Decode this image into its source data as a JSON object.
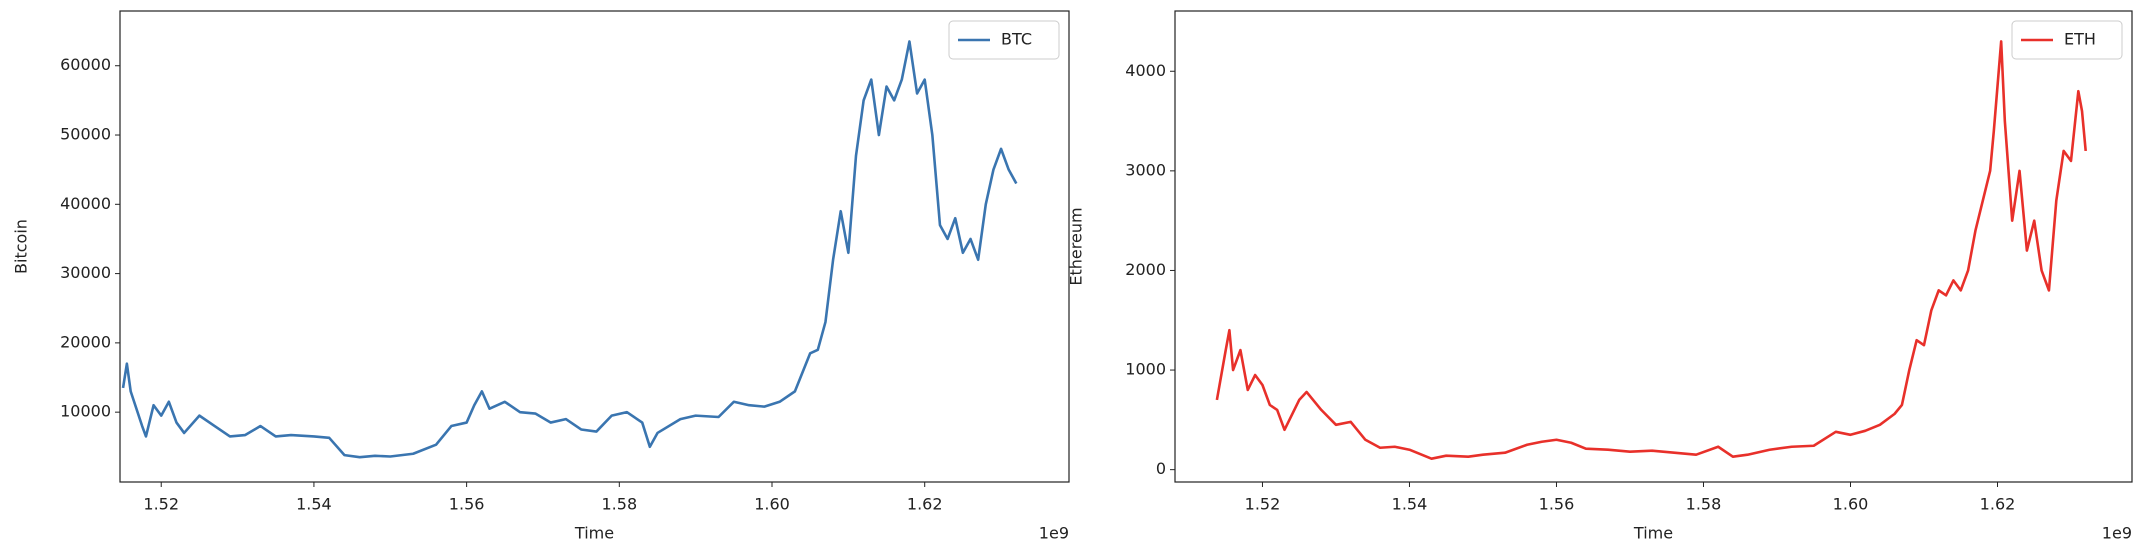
{
  "chart_data": [
    {
      "type": "line",
      "xlabel": "Time",
      "ylabel": "Bitcoin",
      "x_offset_label": "1e9",
      "legend": "upper right",
      "x": [
        1.515,
        1.5155,
        1.516,
        1.5175,
        1.518,
        1.519,
        1.52,
        1.521,
        1.522,
        1.523,
        1.525,
        1.527,
        1.529,
        1.531,
        1.533,
        1.535,
        1.537,
        1.54,
        1.542,
        1.544,
        1.546,
        1.548,
        1.55,
        1.553,
        1.556,
        1.558,
        1.56,
        1.561,
        1.562,
        1.563,
        1.565,
        1.567,
        1.569,
        1.571,
        1.573,
        1.575,
        1.577,
        1.579,
        1.581,
        1.583,
        1.584,
        1.585,
        1.588,
        1.59,
        1.593,
        1.595,
        1.597,
        1.599,
        1.601,
        1.603,
        1.605,
        1.606,
        1.607,
        1.608,
        1.609,
        1.61,
        1.611,
        1.612,
        1.613,
        1.614,
        1.615,
        1.616,
        1.617,
        1.618,
        1.619,
        1.62,
        1.621,
        1.622,
        1.623,
        1.624,
        1.625,
        1.626,
        1.627,
        1.628,
        1.629,
        1.63,
        1.631,
        1.632
      ],
      "series": [
        {
          "name": "BTC",
          "color": "#3a75b0",
          "values": [
            13500,
            17000,
            13000,
            8000,
            6500,
            11000,
            9500,
            11500,
            8500,
            7000,
            9500,
            8000,
            6500,
            6700,
            8000,
            6500,
            6700,
            6500,
            6300,
            3800,
            3500,
            3700,
            3600,
            4000,
            5300,
            8000,
            8500,
            11000,
            13000,
            10500,
            11500,
            10000,
            9800,
            8500,
            9000,
            7500,
            7200,
            9500,
            10000,
            8500,
            5000,
            7000,
            9000,
            9500,
            9300,
            11500,
            11000,
            10800,
            11500,
            13000,
            18500,
            19000,
            23000,
            32000,
            39000,
            33000,
            47000,
            55000,
            58000,
            50000,
            57000,
            55000,
            58000,
            63500,
            56000,
            58000,
            50000,
            37000,
            35000,
            38000,
            33000,
            35000,
            32000,
            40000,
            45000,
            48000,
            45000,
            43000
          ]
        }
      ],
      "xlim": [
        1.5146,
        1.6389
      ],
      "ylim": [
        -80,
        67900
      ],
      "xticks": [
        1.52,
        1.54,
        1.56,
        1.58,
        {
          "value": 1.6,
          "label": "1.60"
        },
        1.62
      ],
      "yticks": [
        10000,
        20000,
        30000,
        40000,
        50000,
        60000
      ]
    },
    {
      "type": "line",
      "xlabel": "Time",
      "ylabel": "Ethereum",
      "x_offset_label": "1e9",
      "legend": "upper right",
      "x": [
        1.5138,
        1.515,
        1.5155,
        1.516,
        1.517,
        1.518,
        1.519,
        1.52,
        1.521,
        1.522,
        1.523,
        1.525,
        1.526,
        1.528,
        1.53,
        1.532,
        1.534,
        1.536,
        1.538,
        1.54,
        1.543,
        1.545,
        1.548,
        1.55,
        1.553,
        1.556,
        1.558,
        1.56,
        1.562,
        1.564,
        1.567,
        1.57,
        1.573,
        1.576,
        1.579,
        1.582,
        1.584,
        1.586,
        1.589,
        1.592,
        1.595,
        1.598,
        1.6,
        1.602,
        1.604,
        1.606,
        1.607,
        1.608,
        1.609,
        1.61,
        1.611,
        1.612,
        1.613,
        1.614,
        1.615,
        1.616,
        1.617,
        1.618,
        1.619,
        1.6195,
        1.6205,
        1.621,
        1.622,
        1.623,
        1.624,
        1.625,
        1.626,
        1.627,
        1.628,
        1.629,
        1.63,
        1.631,
        1.6315,
        1.632
      ],
      "series": [
        {
          "name": "ETH",
          "color": "#e8302a",
          "values": [
            700,
            1200,
            1400,
            1000,
            1200,
            800,
            950,
            850,
            650,
            600,
            400,
            700,
            780,
            600,
            450,
            480,
            300,
            220,
            230,
            200,
            110,
            140,
            130,
            150,
            170,
            250,
            280,
            300,
            270,
            210,
            200,
            180,
            190,
            170,
            150,
            230,
            130,
            150,
            200,
            230,
            240,
            380,
            350,
            390,
            450,
            560,
            650,
            1000,
            1300,
            1250,
            1600,
            1800,
            1750,
            1900,
            1800,
            2000,
            2400,
            2700,
            3000,
            3400,
            4300,
            3500,
            2500,
            3000,
            2200,
            2500,
            2000,
            1800,
            2700,
            3200,
            3100,
            3800,
            3600,
            3200
          ]
        }
      ],
      "xlim": [
        1.5081,
        1.6383
      ],
      "ylim": [
        -124,
        4605
      ],
      "xticks": [
        1.52,
        1.54,
        1.56,
        1.58,
        {
          "value": 1.6,
          "label": "1.60"
        },
        1.62
      ],
      "yticks": [
        0,
        1000,
        2000,
        3000,
        4000
      ]
    }
  ]
}
